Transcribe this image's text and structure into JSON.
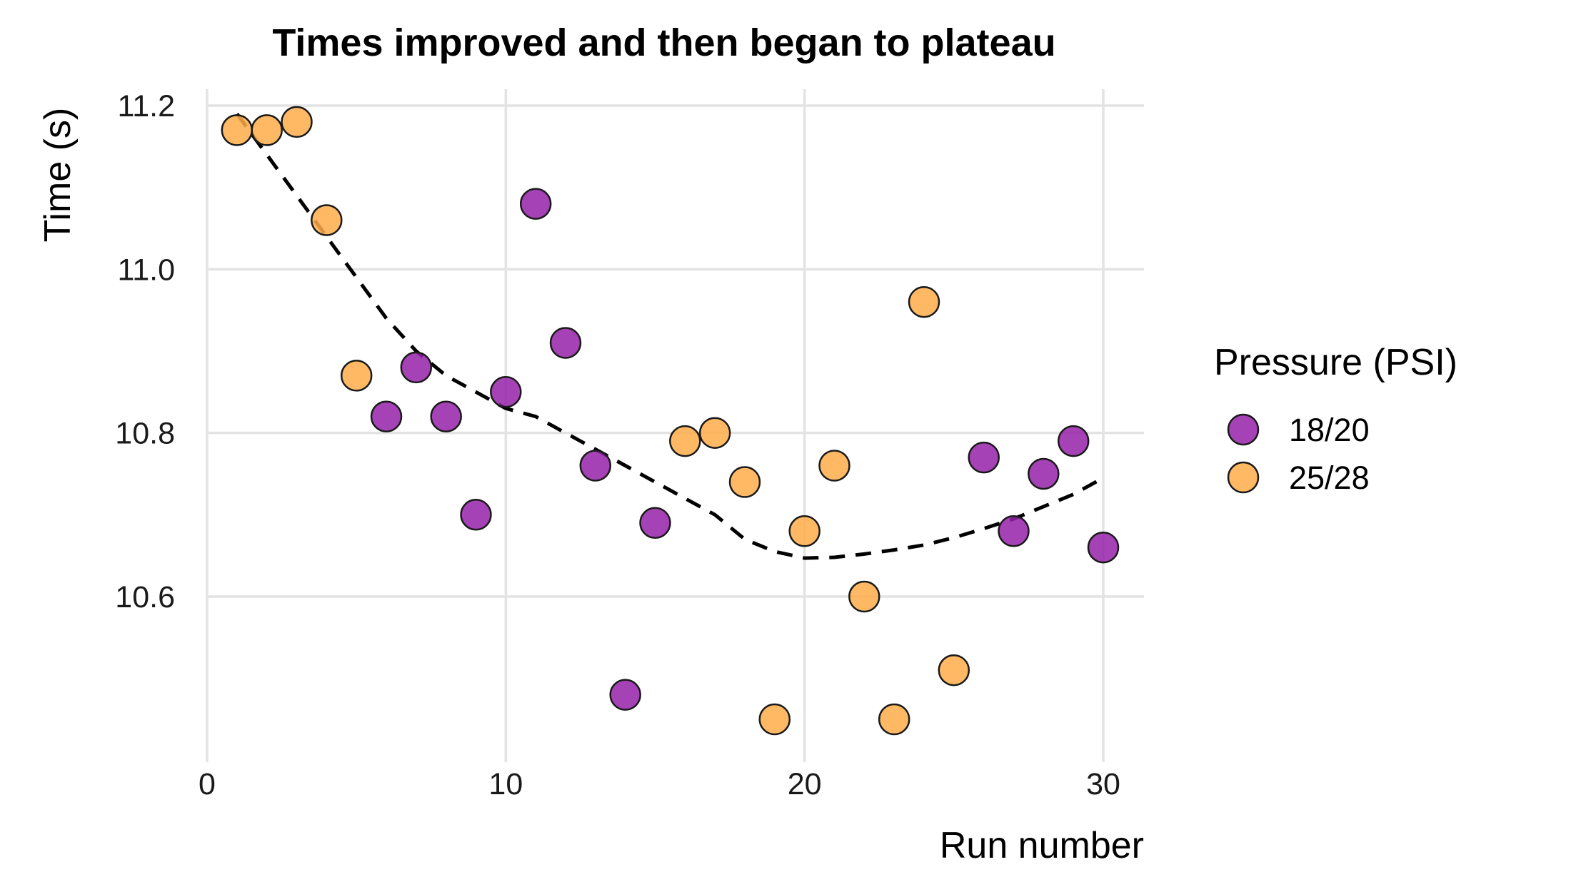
{
  "chart_data": {
    "type": "scatter",
    "title": "Times improved and then began to plateau",
    "xlabel": "Run number",
    "ylabel": "Time (s)",
    "xlim": [
      0,
      31
    ],
    "ylim": [
      10.42,
      11.24
    ],
    "x_ticks": [
      0,
      10,
      20,
      30
    ],
    "y_ticks": [
      10.6,
      10.8,
      11.0,
      11.2
    ],
    "x_tick_labels": [
      "0",
      "10",
      "20",
      "30"
    ],
    "y_tick_labels": [
      "10.6",
      "10.8",
      "11.0",
      "11.2"
    ],
    "grid": true,
    "legend": {
      "title": "Pressure (PSI)",
      "position": "right"
    },
    "series": [
      {
        "name": "18/20",
        "color": "#9521a8",
        "points": [
          {
            "x": 6,
            "y": 10.82
          },
          {
            "x": 7,
            "y": 10.88
          },
          {
            "x": 8,
            "y": 10.82
          },
          {
            "x": 9,
            "y": 10.7
          },
          {
            "x": 10,
            "y": 10.85
          },
          {
            "x": 11,
            "y": 11.08
          },
          {
            "x": 12,
            "y": 10.91
          },
          {
            "x": 13,
            "y": 10.76
          },
          {
            "x": 14,
            "y": 10.48
          },
          {
            "x": 15,
            "y": 10.69
          },
          {
            "x": 26,
            "y": 10.77
          },
          {
            "x": 27,
            "y": 10.68
          },
          {
            "x": 28,
            "y": 10.75
          },
          {
            "x": 29,
            "y": 10.79
          },
          {
            "x": 30,
            "y": 10.66
          }
        ]
      },
      {
        "name": "25/28",
        "color": "#ffad4a",
        "points": [
          {
            "x": 1,
            "y": 11.17
          },
          {
            "x": 2,
            "y": 11.17
          },
          {
            "x": 3,
            "y": 11.18
          },
          {
            "x": 4,
            "y": 11.06
          },
          {
            "x": 5,
            "y": 10.87
          },
          {
            "x": 16,
            "y": 10.79
          },
          {
            "x": 17,
            "y": 10.8
          },
          {
            "x": 18,
            "y": 10.74
          },
          {
            "x": 19,
            "y": 10.45
          },
          {
            "x": 20,
            "y": 10.68
          },
          {
            "x": 21,
            "y": 10.76
          },
          {
            "x": 22,
            "y": 10.6
          },
          {
            "x": 23,
            "y": 10.45
          },
          {
            "x": 24,
            "y": 10.96
          },
          {
            "x": 25,
            "y": 10.51
          }
        ]
      }
    ],
    "trend": {
      "style": "dashed",
      "color": "#000000",
      "points": [
        {
          "x": 1,
          "y": 11.19
        },
        {
          "x": 2,
          "y": 11.14
        },
        {
          "x": 3,
          "y": 11.09
        },
        {
          "x": 4,
          "y": 11.04
        },
        {
          "x": 5,
          "y": 10.99
        },
        {
          "x": 6,
          "y": 10.94
        },
        {
          "x": 7,
          "y": 10.9
        },
        {
          "x": 8,
          "y": 10.87
        },
        {
          "x": 9,
          "y": 10.85
        },
        {
          "x": 10,
          "y": 10.83
        },
        {
          "x": 11,
          "y": 10.82
        },
        {
          "x": 12,
          "y": 10.8
        },
        {
          "x": 13,
          "y": 10.78
        },
        {
          "x": 14,
          "y": 10.76
        },
        {
          "x": 15,
          "y": 10.74
        },
        {
          "x": 16,
          "y": 10.72
        },
        {
          "x": 17,
          "y": 10.7
        },
        {
          "x": 18,
          "y": 10.67
        },
        {
          "x": 19,
          "y": 10.655
        },
        {
          "x": 20,
          "y": 10.647
        },
        {
          "x": 21,
          "y": 10.648
        },
        {
          "x": 22,
          "y": 10.652
        },
        {
          "x": 23,
          "y": 10.657
        },
        {
          "x": 24,
          "y": 10.663
        },
        {
          "x": 25,
          "y": 10.672
        },
        {
          "x": 26,
          "y": 10.683
        },
        {
          "x": 27,
          "y": 10.695
        },
        {
          "x": 28,
          "y": 10.71
        },
        {
          "x": 29,
          "y": 10.725
        },
        {
          "x": 30,
          "y": 10.745
        }
      ]
    }
  }
}
